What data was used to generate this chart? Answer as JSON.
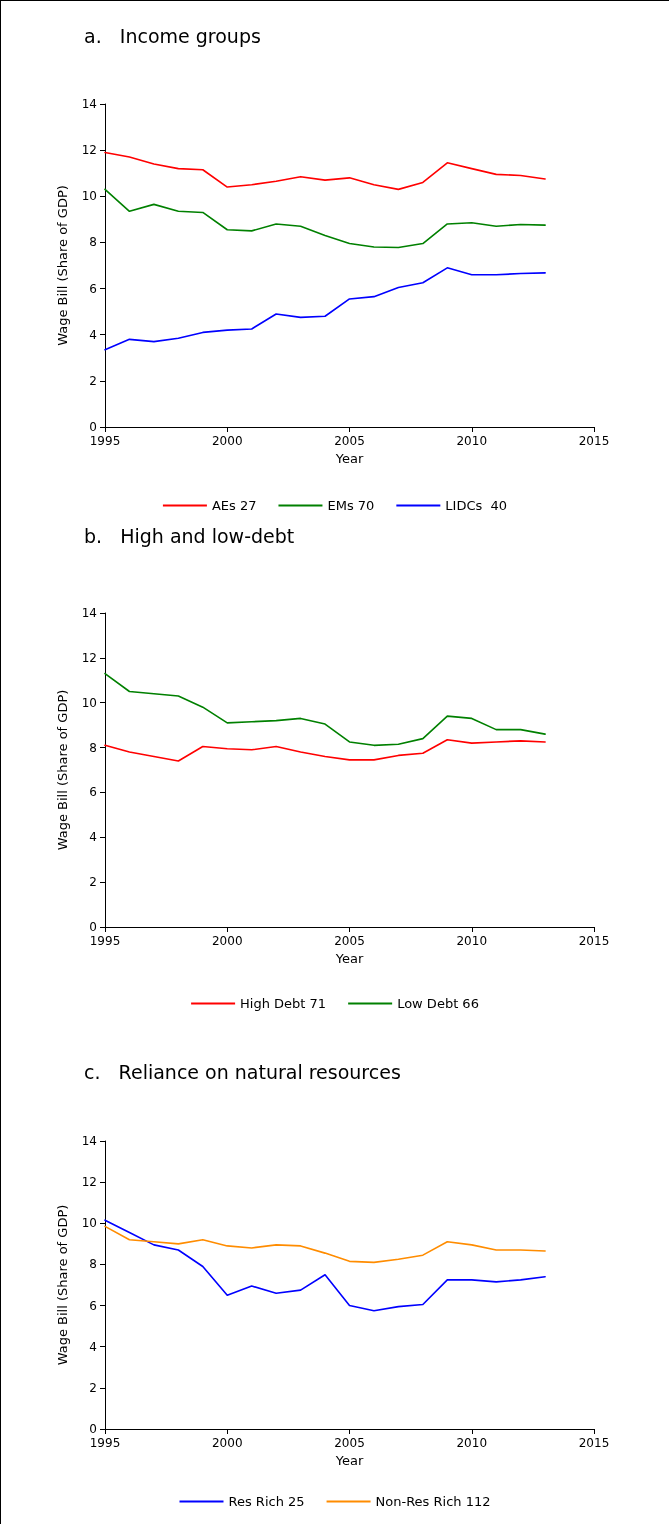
{
  "chart_data": [
    {
      "type": "line",
      "title": "a.   Income groups",
      "xlabel": "Year",
      "ylabel": "Wage Bill (Share of GDP)",
      "x": [
        1995,
        1996,
        1997,
        1998,
        1999,
        2000,
        2001,
        2002,
        2003,
        2004,
        2005,
        2006,
        2007,
        2008,
        2009,
        2010,
        2011,
        2012,
        2013
      ],
      "xlim": [
        1995,
        2015
      ],
      "xticks": [
        1995,
        2000,
        2005,
        2010,
        2015
      ],
      "ylim": [
        0,
        14
      ],
      "yticks": [
        0,
        2,
        4,
        6,
        8,
        10,
        12,
        14
      ],
      "grid": false,
      "legend": "bottom",
      "marker": "none",
      "line_style": "solid",
      "series": [
        {
          "name": "AEs 27",
          "color": "#ff0000",
          "values": [
            11.9,
            11.7,
            11.4,
            11.2,
            11.15,
            10.4,
            10.5,
            10.65,
            10.85,
            10.7,
            10.8,
            10.5,
            10.3,
            10.6,
            11.45,
            11.2,
            10.95,
            10.9,
            10.75
          ]
        },
        {
          "name": "EMs 70",
          "color": "#008000",
          "values": [
            10.3,
            9.35,
            9.65,
            9.35,
            9.3,
            8.55,
            8.5,
            8.8,
            8.7,
            8.3,
            7.95,
            7.8,
            7.78,
            7.95,
            8.8,
            8.85,
            8.7,
            8.78,
            8.75
          ]
        },
        {
          "name": "LIDCs  40",
          "color": "#0000ff",
          "values": [
            3.35,
            3.8,
            3.7,
            3.85,
            4.1,
            4.2,
            4.25,
            4.9,
            4.75,
            4.8,
            5.55,
            5.65,
            6.05,
            6.25,
            6.9,
            6.6,
            6.6,
            6.65,
            6.68
          ]
        }
      ]
    },
    {
      "type": "line",
      "title": "b.   High and low-debt",
      "xlabel": "Year",
      "ylabel": "Wage Bill (Share of GDP)",
      "x": [
        1995,
        1996,
        1997,
        1998,
        1999,
        2000,
        2001,
        2002,
        2003,
        2004,
        2005,
        2006,
        2007,
        2008,
        2009,
        2010,
        2011,
        2012,
        2013
      ],
      "xlim": [
        1995,
        2015
      ],
      "xticks": [
        1995,
        2000,
        2005,
        2010,
        2015
      ],
      "ylim": [
        0,
        14
      ],
      "yticks": [
        0,
        2,
        4,
        6,
        8,
        10,
        12,
        14
      ],
      "grid": false,
      "legend": "bottom",
      "marker": "none",
      "line_style": "solid",
      "series": [
        {
          "name": "High Debt 71",
          "color": "#ff0000",
          "values": [
            8.1,
            7.8,
            7.6,
            7.4,
            8.05,
            7.95,
            7.9,
            8.05,
            7.8,
            7.6,
            7.45,
            7.45,
            7.65,
            7.75,
            8.35,
            8.2,
            8.25,
            8.3,
            8.25
          ]
        },
        {
          "name": "Low Debt 66",
          "color": "#008000",
          "values": [
            11.3,
            10.5,
            10.4,
            10.3,
            9.8,
            9.1,
            9.15,
            9.2,
            9.3,
            9.05,
            8.25,
            8.1,
            8.15,
            8.4,
            9.4,
            9.3,
            8.8,
            8.8,
            8.6
          ]
        }
      ]
    },
    {
      "type": "line",
      "title": "c.   Reliance on natural resources",
      "xlabel": "Year",
      "ylabel": "Wage Bill (Share of GDP)",
      "x": [
        1995,
        1996,
        1997,
        1998,
        1999,
        2000,
        2001,
        2002,
        2003,
        2004,
        2005,
        2006,
        2007,
        2008,
        2009,
        2010,
        2011,
        2012,
        2013
      ],
      "xlim": [
        1995,
        2015
      ],
      "xticks": [
        1995,
        2000,
        2005,
        2010,
        2015
      ],
      "ylim": [
        0,
        14
      ],
      "yticks": [
        0,
        2,
        4,
        6,
        8,
        10,
        12,
        14
      ],
      "grid": false,
      "legend": "bottom",
      "marker": "none",
      "line_style": "solid",
      "series": [
        {
          "name": "Res Rich 25",
          "color": "#0000ff",
          "values": [
            10.15,
            9.55,
            8.95,
            8.7,
            7.9,
            6.5,
            6.95,
            6.6,
            6.75,
            7.5,
            6.0,
            5.75,
            5.95,
            6.05,
            7.25,
            7.25,
            7.15,
            7.25,
            7.4
          ]
        },
        {
          "name": "Non-Res Rich 112",
          "color": "#ff8c00",
          "values": [
            9.85,
            9.2,
            9.1,
            9.0,
            9.2,
            8.9,
            8.8,
            8.95,
            8.9,
            8.55,
            8.15,
            8.1,
            8.25,
            8.45,
            9.1,
            8.95,
            8.7,
            8.7,
            8.65
          ]
        }
      ]
    }
  ]
}
